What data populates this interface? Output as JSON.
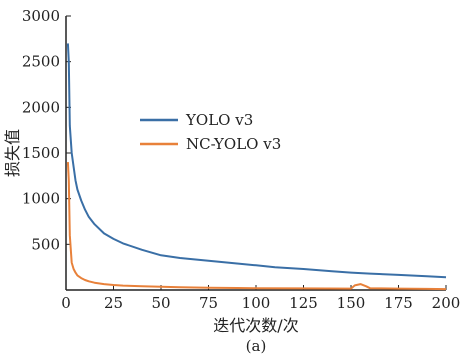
{
  "chart_data": {
    "type": "line",
    "xlabel": "迭代次数/次",
    "ylabel": "损失值",
    "caption": "(a)",
    "xlim": [
      0,
      200
    ],
    "ylim": [
      0,
      3000
    ],
    "x_ticks": [
      0,
      25,
      50,
      75,
      100,
      125,
      150,
      175,
      200
    ],
    "y_ticks": [
      500,
      1000,
      1500,
      2000,
      2500,
      3000
    ],
    "grid": false,
    "legend_position": "center",
    "series": [
      {
        "name": "YOLO v3",
        "color": "#3a6fa6",
        "x": [
          1,
          1.5,
          2,
          3,
          4,
          5,
          6,
          8,
          10,
          12,
          15,
          20,
          25,
          30,
          40,
          50,
          60,
          75,
          90,
          100,
          110,
          125,
          140,
          150,
          160,
          175,
          190,
          200
        ],
        "y": [
          2700,
          2500,
          1800,
          1500,
          1350,
          1200,
          1100,
          980,
          880,
          800,
          720,
          620,
          560,
          510,
          440,
          380,
          350,
          320,
          290,
          270,
          250,
          230,
          205,
          190,
          180,
          165,
          150,
          140
        ]
      },
      {
        "name": "NC-YOLO v3",
        "color": "#e8813a",
        "x": [
          1,
          1.5,
          2,
          3,
          4,
          5,
          6,
          8,
          10,
          12,
          15,
          20,
          25,
          30,
          40,
          50,
          60,
          75,
          90,
          100,
          125,
          150,
          152,
          155,
          158,
          160,
          175,
          190,
          200
        ],
        "y": [
          1400,
          1200,
          600,
          300,
          230,
          190,
          160,
          130,
          110,
          95,
          80,
          65,
          55,
          48,
          40,
          35,
          30,
          25,
          22,
          20,
          18,
          15,
          50,
          65,
          40,
          20,
          15,
          12,
          10
        ]
      }
    ]
  }
}
